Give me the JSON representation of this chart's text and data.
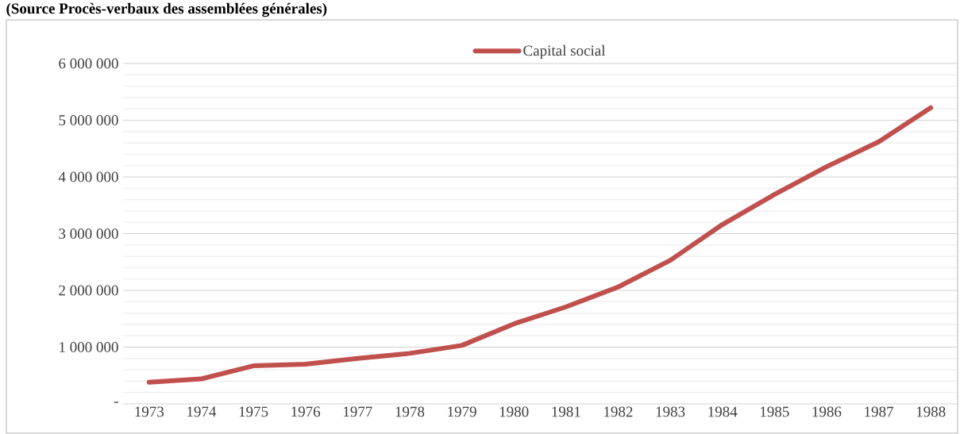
{
  "chart_data": {
    "type": "line",
    "title": "(Source Procès-verbaux des assemblées générales)",
    "categories": [
      "1973",
      "1974",
      "1975",
      "1976",
      "1977",
      "1978",
      "1979",
      "1980",
      "1981",
      "1982",
      "1983",
      "1984",
      "1985",
      "1986",
      "1987",
      "1988"
    ],
    "series": [
      {
        "name": "Capital social",
        "color": "#c0504d",
        "values": [
          380000,
          440000,
          670000,
          700000,
          800000,
          890000,
          1030000,
          1410000,
          1710000,
          2060000,
          2530000,
          3160000,
          3690000,
          4180000,
          4620000,
          5220000
        ]
      }
    ],
    "ylim": [
      0,
      6000000
    ],
    "yticks": [
      {
        "value": 0,
        "label": "-"
      },
      {
        "value": 200000,
        "label": null
      },
      {
        "value": 400000,
        "label": null
      },
      {
        "value": 600000,
        "label": null
      },
      {
        "value": 800000,
        "label": null
      },
      {
        "value": 1000000,
        "label": "1 000 000"
      },
      {
        "value": 1200000,
        "label": null
      },
      {
        "value": 1400000,
        "label": null
      },
      {
        "value": 1600000,
        "label": null
      },
      {
        "value": 1800000,
        "label": null
      },
      {
        "value": 2000000,
        "label": "2 000 000"
      },
      {
        "value": 2200000,
        "label": null
      },
      {
        "value": 2400000,
        "label": null
      },
      {
        "value": 2600000,
        "label": null
      },
      {
        "value": 2800000,
        "label": null
      },
      {
        "value": 3000000,
        "label": "3 000 000"
      },
      {
        "value": 3200000,
        "label": null
      },
      {
        "value": 3400000,
        "label": null
      },
      {
        "value": 3600000,
        "label": null
      },
      {
        "value": 3800000,
        "label": null
      },
      {
        "value": 4000000,
        "label": "4 000 000"
      },
      {
        "value": 4200000,
        "label": null
      },
      {
        "value": 4400000,
        "label": null
      },
      {
        "value": 4600000,
        "label": null
      },
      {
        "value": 4800000,
        "label": null
      },
      {
        "value": 5000000,
        "label": "5 000 000"
      },
      {
        "value": 5200000,
        "label": null
      },
      {
        "value": 5400000,
        "label": null
      },
      {
        "value": 5600000,
        "label": null
      },
      {
        "value": 5800000,
        "label": null
      },
      {
        "value": 6000000,
        "label": "6 000 000"
      }
    ],
    "grid": "y",
    "legend": "top",
    "marker": "none",
    "line_style": "solid"
  }
}
